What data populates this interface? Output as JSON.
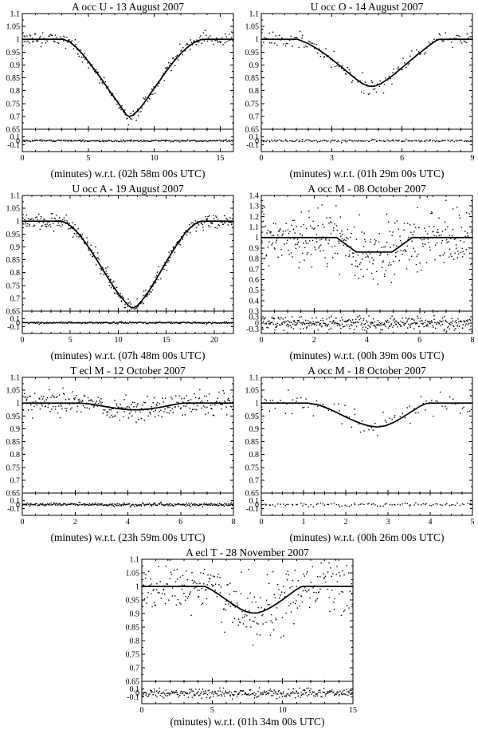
{
  "figure": {
    "background": "#ffffff",
    "ink": "#000000",
    "description": "Seven normalized light curves of mutual occultation/eclipse events with fitted model curves and residual sub-panels"
  },
  "chart_data": [
    {
      "type": "scatter",
      "title": "A occ U - 13 August 2007",
      "xlabel": "(minutes) w.r.t. (02h 58m 00s UTC)",
      "xlim": [
        0,
        16
      ],
      "xticks": [
        0,
        5,
        10,
        15
      ],
      "x_minor_step": 1,
      "ylim": [
        0.65,
        1.1
      ],
      "yticks": [
        0.65,
        0.7,
        0.75,
        0.8,
        0.85,
        0.9,
        0.95,
        1,
        1.05,
        1.1
      ],
      "y_minor_step": 0.025,
      "model": [
        [
          0,
          1
        ],
        [
          3.1,
          1
        ],
        [
          3.6,
          0.99
        ],
        [
          4.1,
          0.968
        ],
        [
          4.6,
          0.94
        ],
        [
          5.1,
          0.907
        ],
        [
          5.6,
          0.873
        ],
        [
          6.1,
          0.838
        ],
        [
          6.6,
          0.8
        ],
        [
          7.1,
          0.765
        ],
        [
          7.5,
          0.735
        ],
        [
          7.9,
          0.705
        ],
        [
          8.1,
          0.7
        ],
        [
          8.4,
          0.705
        ],
        [
          8.8,
          0.725
        ],
        [
          9.2,
          0.75
        ],
        [
          9.6,
          0.78
        ],
        [
          10,
          0.81
        ],
        [
          10.5,
          0.845
        ],
        [
          11,
          0.882
        ],
        [
          11.5,
          0.915
        ],
        [
          12,
          0.944
        ],
        [
          12.5,
          0.968
        ],
        [
          13,
          0.987
        ],
        [
          13.5,
          0.998
        ],
        [
          13.8,
          1
        ],
        [
          16,
          1
        ]
      ],
      "scatter": {
        "n": 230,
        "sigma": 0.012
      },
      "residual": {
        "ylim": [
          -0.27,
          0.29
        ],
        "yticks": [
          -0.1,
          0,
          0.1
        ],
        "sigma": 0.011
      },
      "seed": 1
    },
    {
      "type": "scatter",
      "title": "U occ O - 14 August 2007",
      "xlabel": "(minutes) w.r.t. (01h 29m 00s UTC)",
      "xlim": [
        0,
        9
      ],
      "xticks": [
        0,
        3,
        6,
        9
      ],
      "x_minor_step": 0.5,
      "ylim": [
        0.65,
        1.1
      ],
      "yticks": [
        0.65,
        0.7,
        0.75,
        0.8,
        0.85,
        0.9,
        0.95,
        1,
        1.05,
        1.1
      ],
      "y_minor_step": 0.025,
      "model": [
        [
          0,
          1
        ],
        [
          1.55,
          1
        ],
        [
          2,
          0.983
        ],
        [
          2.4,
          0.962
        ],
        [
          2.8,
          0.937
        ],
        [
          3.2,
          0.908
        ],
        [
          3.6,
          0.878
        ],
        [
          4,
          0.848
        ],
        [
          4.3,
          0.828
        ],
        [
          4.55,
          0.818
        ],
        [
          4.8,
          0.817
        ],
        [
          5.1,
          0.827
        ],
        [
          5.5,
          0.852
        ],
        [
          5.9,
          0.882
        ],
        [
          6.3,
          0.913
        ],
        [
          6.7,
          0.943
        ],
        [
          7.1,
          0.972
        ],
        [
          7.45,
          0.995
        ],
        [
          7.6,
          1
        ],
        [
          9,
          1
        ]
      ],
      "scatter": {
        "n": 155,
        "sigma": 0.016
      },
      "residual": {
        "ylim": [
          -0.27,
          0.29
        ],
        "yticks": [
          -0.1,
          0,
          0.1
        ],
        "sigma": 0.014
      },
      "seed": 2
    },
    {
      "type": "scatter",
      "title": "U occ A - 19 August 2007",
      "xlabel": "(minutes) w.r.t. (07h 48m 00s UTC)",
      "xlim": [
        0,
        22
      ],
      "xticks": [
        0,
        5,
        10,
        15,
        20
      ],
      "x_minor_step": 1,
      "ylim": [
        0.65,
        1.1
      ],
      "yticks": [
        0.65,
        0.7,
        0.75,
        0.8,
        0.85,
        0.9,
        0.95,
        1,
        1.05,
        1.1
      ],
      "y_minor_step": 0.025,
      "model": [
        [
          0,
          1
        ],
        [
          4.1,
          1
        ],
        [
          4.6,
          0.993
        ],
        [
          5.1,
          0.98
        ],
        [
          5.6,
          0.962
        ],
        [
          6.1,
          0.94
        ],
        [
          6.6,
          0.915
        ],
        [
          7.1,
          0.888
        ],
        [
          7.6,
          0.859
        ],
        [
          8.1,
          0.829
        ],
        [
          8.6,
          0.799
        ],
        [
          9.1,
          0.769
        ],
        [
          9.6,
          0.74
        ],
        [
          10.1,
          0.714
        ],
        [
          10.6,
          0.691
        ],
        [
          11,
          0.674
        ],
        [
          11.3,
          0.665
        ],
        [
          11.6,
          0.663
        ],
        [
          12,
          0.672
        ],
        [
          12.4,
          0.688
        ],
        [
          12.9,
          0.712
        ],
        [
          13.4,
          0.74
        ],
        [
          13.9,
          0.771
        ],
        [
          14.4,
          0.803
        ],
        [
          14.9,
          0.835
        ],
        [
          15.4,
          0.867
        ],
        [
          15.9,
          0.897
        ],
        [
          16.4,
          0.925
        ],
        [
          16.9,
          0.95
        ],
        [
          17.4,
          0.971
        ],
        [
          17.9,
          0.987
        ],
        [
          18.4,
          0.997
        ],
        [
          18.7,
          1
        ],
        [
          22,
          1
        ]
      ],
      "scatter": {
        "n": 330,
        "sigma": 0.013
      },
      "residual": {
        "ylim": [
          -0.27,
          0.29
        ],
        "yticks": [
          -0.1,
          0,
          0.1
        ],
        "sigma": 0.011
      },
      "seed": 3
    },
    {
      "type": "scatter",
      "title": "A occ M - 08 October 2007",
      "xlabel": "(minutes) w.r.t. (00h 39m 00s UTC)",
      "xlim": [
        0,
        8
      ],
      "xticks": [
        0,
        2,
        4,
        6,
        8
      ],
      "x_minor_step": 0.5,
      "ylim": [
        0.3,
        1.4
      ],
      "yticks": [
        0.3,
        0.4,
        0.5,
        0.6,
        0.7,
        0.8,
        0.9,
        1,
        1.1,
        1.2,
        1.3,
        1.4
      ],
      "y_minor_step": 0.05,
      "model": [
        [
          0,
          1
        ],
        [
          2.85,
          1
        ],
        [
          3.6,
          0.862
        ],
        [
          4.95,
          0.862
        ],
        [
          5.72,
          1
        ],
        [
          8,
          1
        ]
      ],
      "scatter": {
        "n": 380,
        "sigma": 0.135
      },
      "residual": {
        "ylim": [
          -0.5,
          0.56
        ],
        "yticks": [
          -0.3,
          0,
          0.3
        ],
        "sigma": 0.145
      },
      "seed": 4
    },
    {
      "type": "scatter",
      "title": "T ecl M - 12 October 2007",
      "xlabel": "(minutes) w.r.t. (23h 59m 00s UTC)",
      "xlim": [
        0,
        8
      ],
      "xticks": [
        0,
        2,
        4,
        6,
        8
      ],
      "x_minor_step": 0.5,
      "ylim": [
        0.65,
        1.1
      ],
      "yticks": [
        0.65,
        0.7,
        0.75,
        0.8,
        0.85,
        0.9,
        0.95,
        1,
        1.05,
        1.1
      ],
      "y_minor_step": 0.025,
      "model": [
        [
          0,
          1
        ],
        [
          2.2,
          1
        ],
        [
          2.6,
          0.996
        ],
        [
          3,
          0.989
        ],
        [
          3.4,
          0.982
        ],
        [
          3.8,
          0.976
        ],
        [
          4.1,
          0.974
        ],
        [
          4.4,
          0.974
        ],
        [
          4.8,
          0.977
        ],
        [
          5.2,
          0.983
        ],
        [
          5.6,
          0.991
        ],
        [
          5.9,
          0.997
        ],
        [
          6.1,
          1
        ],
        [
          8,
          1
        ]
      ],
      "scatter": {
        "n": 300,
        "sigma": 0.023
      },
      "residual": {
        "ylim": [
          -0.27,
          0.29
        ],
        "yticks": [
          -0.1,
          0,
          0.1
        ],
        "sigma": 0.019
      },
      "seed": 5
    },
    {
      "type": "scatter",
      "title": "A occ M - 18 October 2007",
      "xlabel": "(minutes) w.r.t. (00h 26m 00s UTC)",
      "xlim": [
        0,
        5
      ],
      "xticks": [
        0,
        1,
        2,
        3,
        4,
        5
      ],
      "x_minor_step": 0.25,
      "ylim": [
        0.65,
        1.1
      ],
      "yticks": [
        0.65,
        0.7,
        0.75,
        0.8,
        0.85,
        0.9,
        0.95,
        1,
        1.05,
        1.1
      ],
      "y_minor_step": 0.025,
      "model": [
        [
          0,
          1
        ],
        [
          1.1,
          1
        ],
        [
          1.35,
          0.993
        ],
        [
          1.6,
          0.978
        ],
        [
          1.85,
          0.958
        ],
        [
          2.1,
          0.938
        ],
        [
          2.35,
          0.921
        ],
        [
          2.55,
          0.911
        ],
        [
          2.75,
          0.907
        ],
        [
          2.95,
          0.912
        ],
        [
          3.15,
          0.926
        ],
        [
          3.35,
          0.945
        ],
        [
          3.55,
          0.966
        ],
        [
          3.75,
          0.987
        ],
        [
          3.9,
          0.998
        ],
        [
          4,
          1
        ],
        [
          5,
          1
        ]
      ],
      "scatter": {
        "n": 95,
        "sigma": 0.021
      },
      "residual": {
        "ylim": [
          -0.27,
          0.29
        ],
        "yticks": [
          -0.1,
          0,
          0.1
        ],
        "sigma": 0.02
      },
      "seed": 6
    },
    {
      "type": "scatter",
      "title": "A ecl T - 28 November 2007",
      "xlabel": "(minutes) w.r.t. (01h 34m 00s UTC)",
      "xlim": [
        0,
        15
      ],
      "xticks": [
        0,
        5,
        10,
        15
      ],
      "x_minor_step": 1,
      "ylim": [
        0.65,
        1.1
      ],
      "yticks": [
        0.65,
        0.7,
        0.75,
        0.8,
        0.85,
        0.9,
        0.95,
        1,
        1.05,
        1.1
      ],
      "y_minor_step": 0.025,
      "model": [
        [
          0,
          1
        ],
        [
          4.5,
          1
        ],
        [
          5,
          0.986
        ],
        [
          5.5,
          0.969
        ],
        [
          6,
          0.951
        ],
        [
          6.5,
          0.933
        ],
        [
          7,
          0.917
        ],
        [
          7.4,
          0.907
        ],
        [
          7.8,
          0.902
        ],
        [
          8.2,
          0.902
        ],
        [
          8.6,
          0.908
        ],
        [
          9,
          0.918
        ],
        [
          9.5,
          0.933
        ],
        [
          10,
          0.951
        ],
        [
          10.5,
          0.97
        ],
        [
          11,
          0.989
        ],
        [
          11.3,
          0.998
        ],
        [
          11.45,
          1
        ],
        [
          15,
          1
        ]
      ],
      "scatter": {
        "n": 310,
        "sigma": 0.052
      },
      "residual": {
        "ylim": [
          -0.27,
          0.29
        ],
        "yticks": [
          -0.1,
          0,
          0.1
        ],
        "sigma": 0.055
      },
      "seed": 7
    }
  ]
}
